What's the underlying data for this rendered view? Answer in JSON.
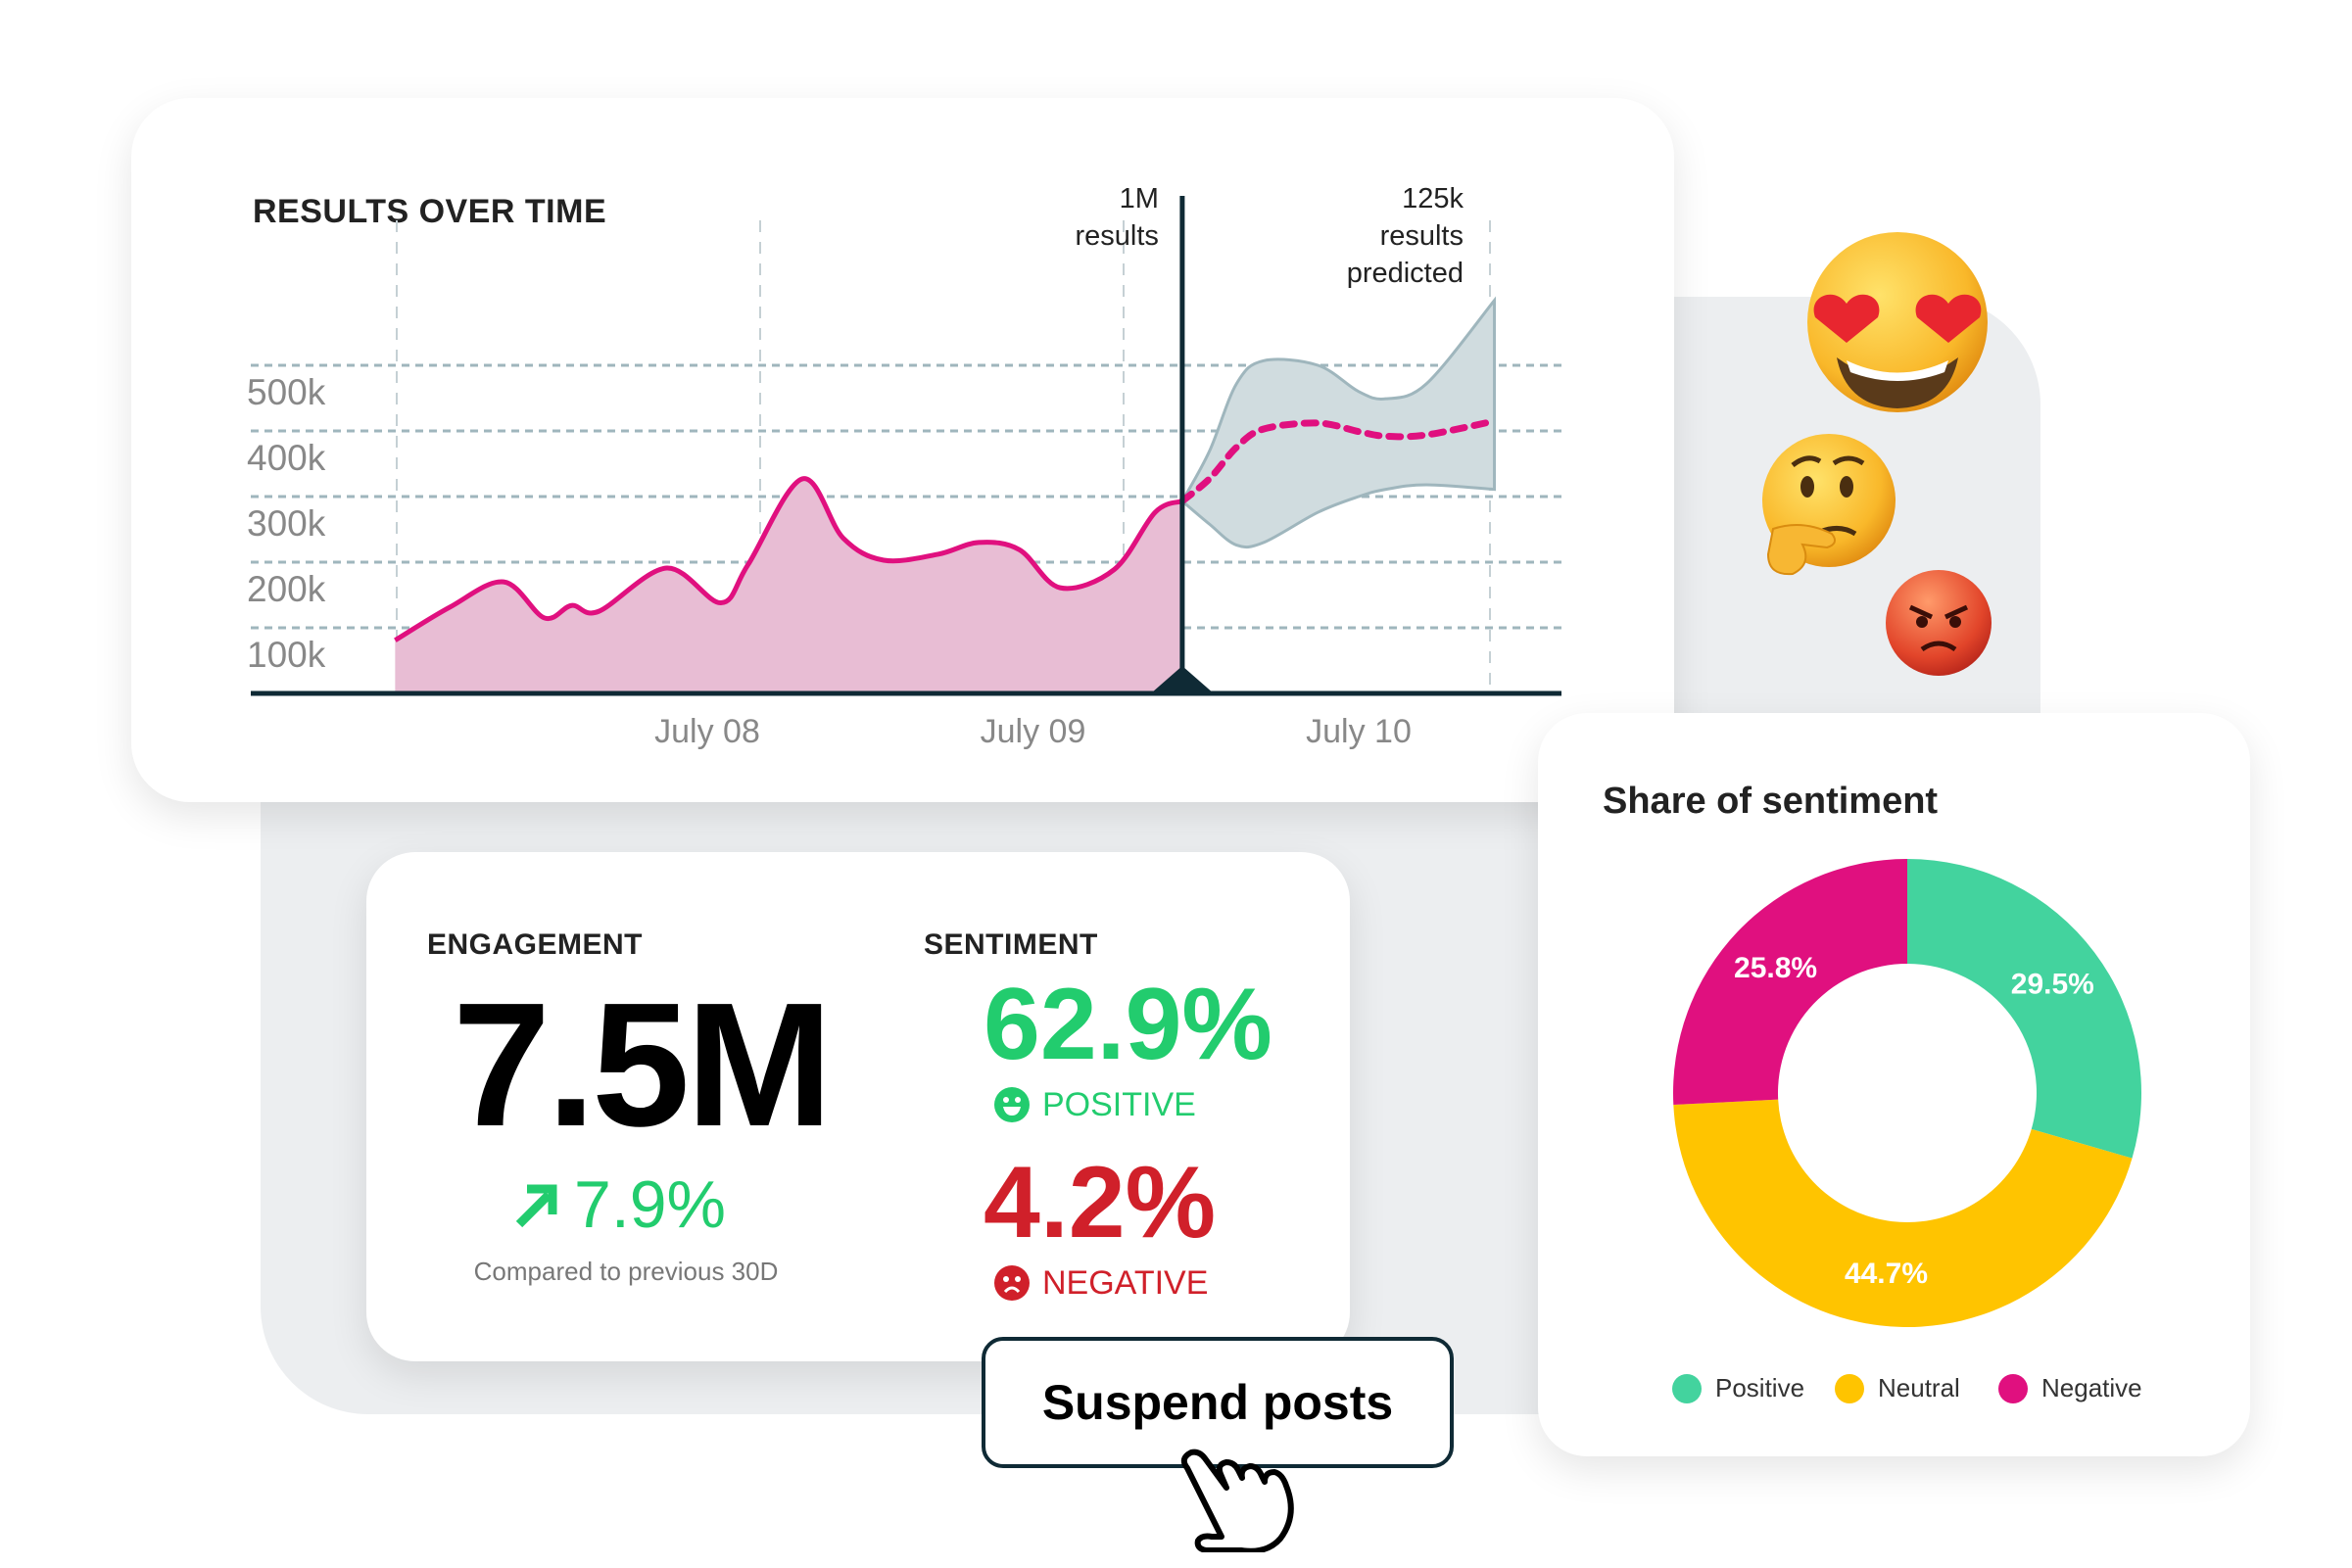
{
  "colors": {
    "accent": "#e0107f",
    "area": "#e8bdd4",
    "forecast_band": "#d0dcdf",
    "forecast_edge": "#9fb6bd",
    "axis": "#0f2a35",
    "positive": "#22cc6e",
    "negative": "#d0202a",
    "donut_positive": "#43d39e",
    "donut_neutral": "#ffc400",
    "donut_negative": "#e0107f",
    "panel": "#eceef0"
  },
  "results_chart": {
    "title": "RESULTS OVER TIME",
    "chart_data": {
      "type": "area",
      "ytick_labels": [
        "100k",
        "200k",
        "300k",
        "400k",
        "500k"
      ],
      "yticks": [
        100000,
        200000,
        300000,
        400000,
        500000
      ],
      "xtick_labels": [
        "July 08",
        "July 09",
        "July 10"
      ],
      "grid": true,
      "actual": {
        "x": [
          "Jul 07 01:00",
          "Jul 07 05:00",
          "Jul 07 09:00",
          "Jul 07 12:00",
          "Jul 07 14:00",
          "Jul 07 16:00",
          "Jul 07 21:00",
          "Jul 08 01:00",
          "Jul 08 03:00",
          "Jul 08 07:00",
          "Jul 08 10:00",
          "Jul 08 13:00",
          "Jul 08 17:00",
          "Jul 08 20:00",
          "Jul 08 23:00",
          "Jul 09 02:00",
          "Jul 09 06:00",
          "Jul 09 09:00",
          "Jul 09 11:00"
        ],
        "y": [
          81000,
          131000,
          170000,
          115000,
          134000,
          125000,
          191000,
          138000,
          196000,
          327000,
          237000,
          203000,
          212000,
          230000,
          219000,
          161000,
          189000,
          276000,
          293000
        ]
      },
      "forecast": {
        "x": [
          "Jul 09 11:00",
          "Jul 09 13:00",
          "Jul 09 15:00",
          "Jul 09 17:00",
          "Jul 09 21:00",
          "Jul 10 00:00",
          "Jul 10 02:00",
          "Jul 10 05:00",
          "Jul 10 10:00"
        ],
        "y": [
          293000,
          327000,
          375000,
          403000,
          412000,
          399000,
          392000,
          394000,
          415000
        ],
        "upper": [
          293000,
          369000,
          472000,
          507000,
          500000,
          460000,
          449000,
          472000,
          599000
        ],
        "lower": [
          293000,
          258000,
          226000,
          230000,
          276000,
          300000,
          311000,
          318000,
          311000
        ]
      },
      "now_marker": {
        "x": "Jul 09 11:00",
        "label_line1": "1M",
        "label_line2": "results"
      },
      "forecast_label": {
        "line1": "125k",
        "line2": "results",
        "line3": "predicted"
      }
    }
  },
  "engagement": {
    "label": "ENGAGEMENT",
    "value": "7.5M",
    "change": "7.9%",
    "change_icon": "arrow-up-right-icon",
    "comparison": "Compared to previous 30D"
  },
  "sentiment": {
    "label": "SENTIMENT",
    "positive_value": "62.9%",
    "positive_label": "POSITIVE",
    "negative_value": "4.2%",
    "negative_label": "NEGATIVE"
  },
  "action_button": {
    "label": "Suspend posts"
  },
  "share_of_sentiment": {
    "title": "Share of sentiment",
    "chart_data": {
      "type": "pie",
      "donut": true,
      "categories": [
        "Positive",
        "Neutral",
        "Negative"
      ],
      "values": [
        29.5,
        44.7,
        25.8
      ],
      "data_labels": [
        "29.5%",
        "44.7%",
        "25.8%"
      ],
      "legend_placement": "bottom"
    }
  },
  "emojis": [
    "heart-eyes-emoji",
    "thinking-emoji",
    "angry-emoji"
  ]
}
